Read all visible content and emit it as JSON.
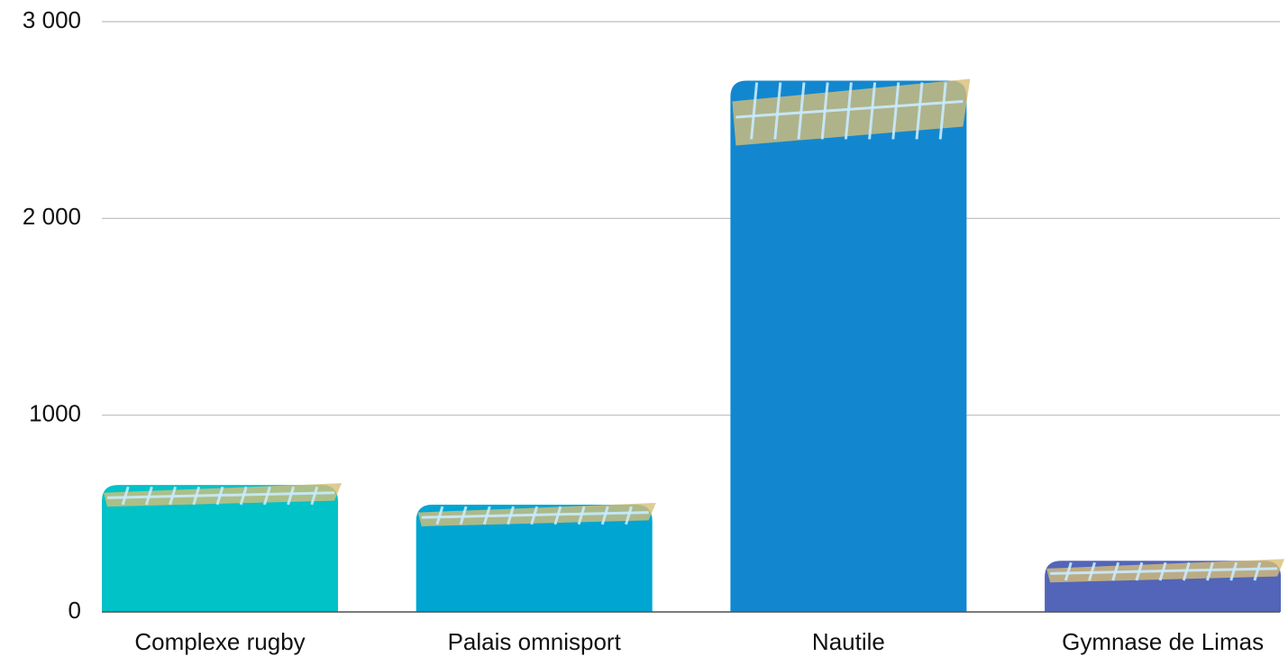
{
  "chart_data": {
    "type": "bar",
    "categories": [
      "Complexe rugby",
      "Palais omnisport",
      "Nautile",
      "Gymnase de Limas"
    ],
    "values": [
      645,
      545,
      2700,
      260
    ],
    "colors": [
      "#00c2c7",
      "#00a5d2",
      "#1287cf",
      "#5265b8"
    ],
    "ylim": [
      0,
      3000
    ],
    "yticks": [
      0,
      1000,
      {
        "value": 2000,
        "label": "2 000"
      },
      {
        "value": 3000,
        "label": "3 000"
      }
    ],
    "grid": true
  }
}
